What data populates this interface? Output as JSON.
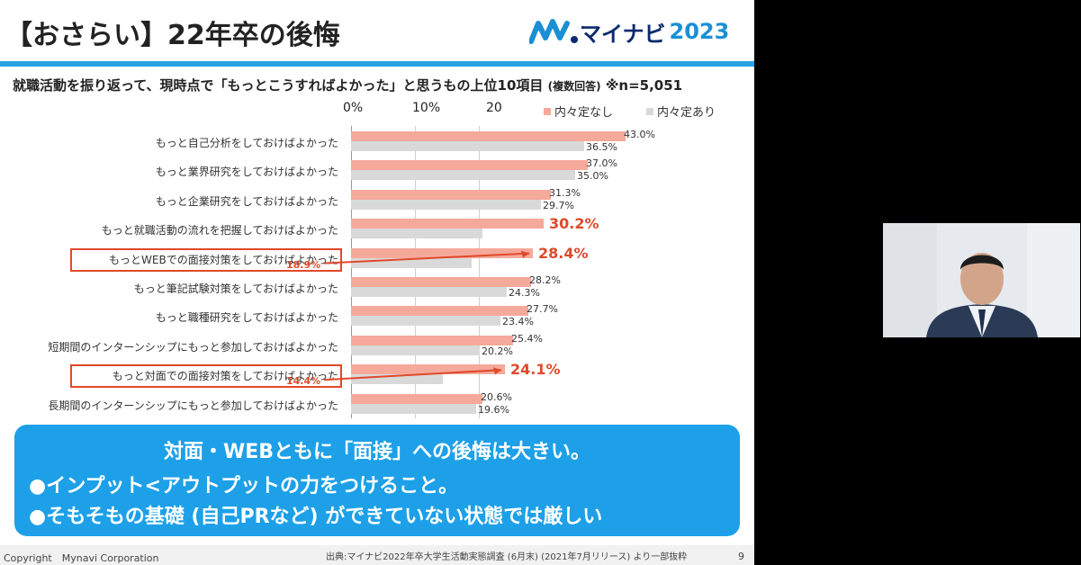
{
  "header": {
    "title": "【おさらい】22年卒の後悔",
    "brand": "マイナビ",
    "brand_year": "2023"
  },
  "subtitle": {
    "main": "就職活動を振り返って、現時点で「もっとこうすればよかった」と思うもの上位10項目",
    "note": "(複数回答)",
    "n": "※n=5,051"
  },
  "chart_data": {
    "type": "bar",
    "orientation": "horizontal",
    "axis_ticks": [
      "0%",
      "10%",
      "20"
    ],
    "categories": [
      "もっと自己分析をしておけばよかった",
      "もっと業界研究をしておけばよかった",
      "もっと企業研究をしておけばよかった",
      "もっと就職活動の流れを把握しておけばよかった",
      "もっとWEBでの面接対策をしておけばよかった",
      "もっと筆記試験対策をしておけばよかった",
      "もっと職種研究をしておけばよかった",
      "短期間のインターンシップにもっと参加しておけばよかった",
      "もっと対面での面接対策をしておけばよかった",
      "長期間のインターンシップにもっと参加しておけばよかった"
    ],
    "series": [
      {
        "name": "内々定なし",
        "color": "#f5a99b",
        "values": [
          43.0,
          37.0,
          31.3,
          30.2,
          28.4,
          28.2,
          27.7,
          25.4,
          24.1,
          20.6
        ],
        "labels": [
          "43.0%",
          "37.0%",
          "31.3%",
          "30.2%",
          "28.4%",
          "28.2%",
          "27.7%",
          "25.4%",
          "24.1%",
          "20.6%"
        ]
      },
      {
        "name": "内々定あり",
        "color": "#d9d9d9",
        "values": [
          36.5,
          35.0,
          29.7,
          20.5,
          18.9,
          24.3,
          23.4,
          20.2,
          14.4,
          19.6
        ],
        "labels": [
          "36.5%",
          "35.0%",
          "29.7%",
          "",
          "18.9%",
          "24.3%",
          "23.4%",
          "20.2%",
          "14.4%",
          "19.6%"
        ]
      }
    ],
    "highlight_rows": [
      4,
      8
    ],
    "emphasis_rows": [
      3,
      4,
      8
    ],
    "xlim": [
      0,
      45
    ]
  },
  "callout": {
    "headline": "対面・WEBともに「面接」への後悔は大きい。",
    "point1": "●インプット<アウトプットの力をつけること。",
    "point2": "●そもそもの基礎 (自己PRなど) ができていない状態では厳しい"
  },
  "footer": {
    "copyright": "Copyright　Mynavi Corporation",
    "source": "出典:マイナビ2022年卒大学生活動実態調査 (6月末) (2021年7月リリース) より一部抜粋",
    "page": "9"
  }
}
